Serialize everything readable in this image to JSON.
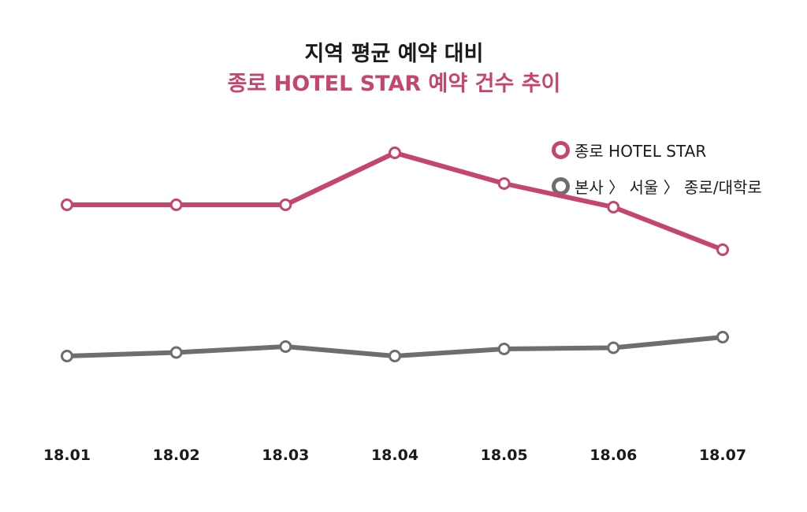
{
  "chart_data": {
    "type": "line",
    "title": "지역 평균 예약 대비",
    "subtitle": "종로 HOTEL STAR 예약 건수 추이",
    "categories": [
      "18.01",
      "18.02",
      "18.03",
      "18.04",
      "18.05",
      "18.06",
      "18.07"
    ],
    "series": [
      {
        "name": "종로 HOTEL STAR",
        "color": "#c4466e",
        "values": [
          100,
          100,
          100,
          122,
          109,
          99,
          81
        ]
      },
      {
        "name": "본사 〉 서울 〉 종로/대학로",
        "color": "#6e6e6e",
        "values": [
          36,
          37.5,
          40,
          36,
          39,
          39.5,
          44
        ]
      }
    ],
    "ylim": [
      0,
      140
    ],
    "grid": false,
    "y_axis_visible": false,
    "legend_position": "top-right"
  }
}
